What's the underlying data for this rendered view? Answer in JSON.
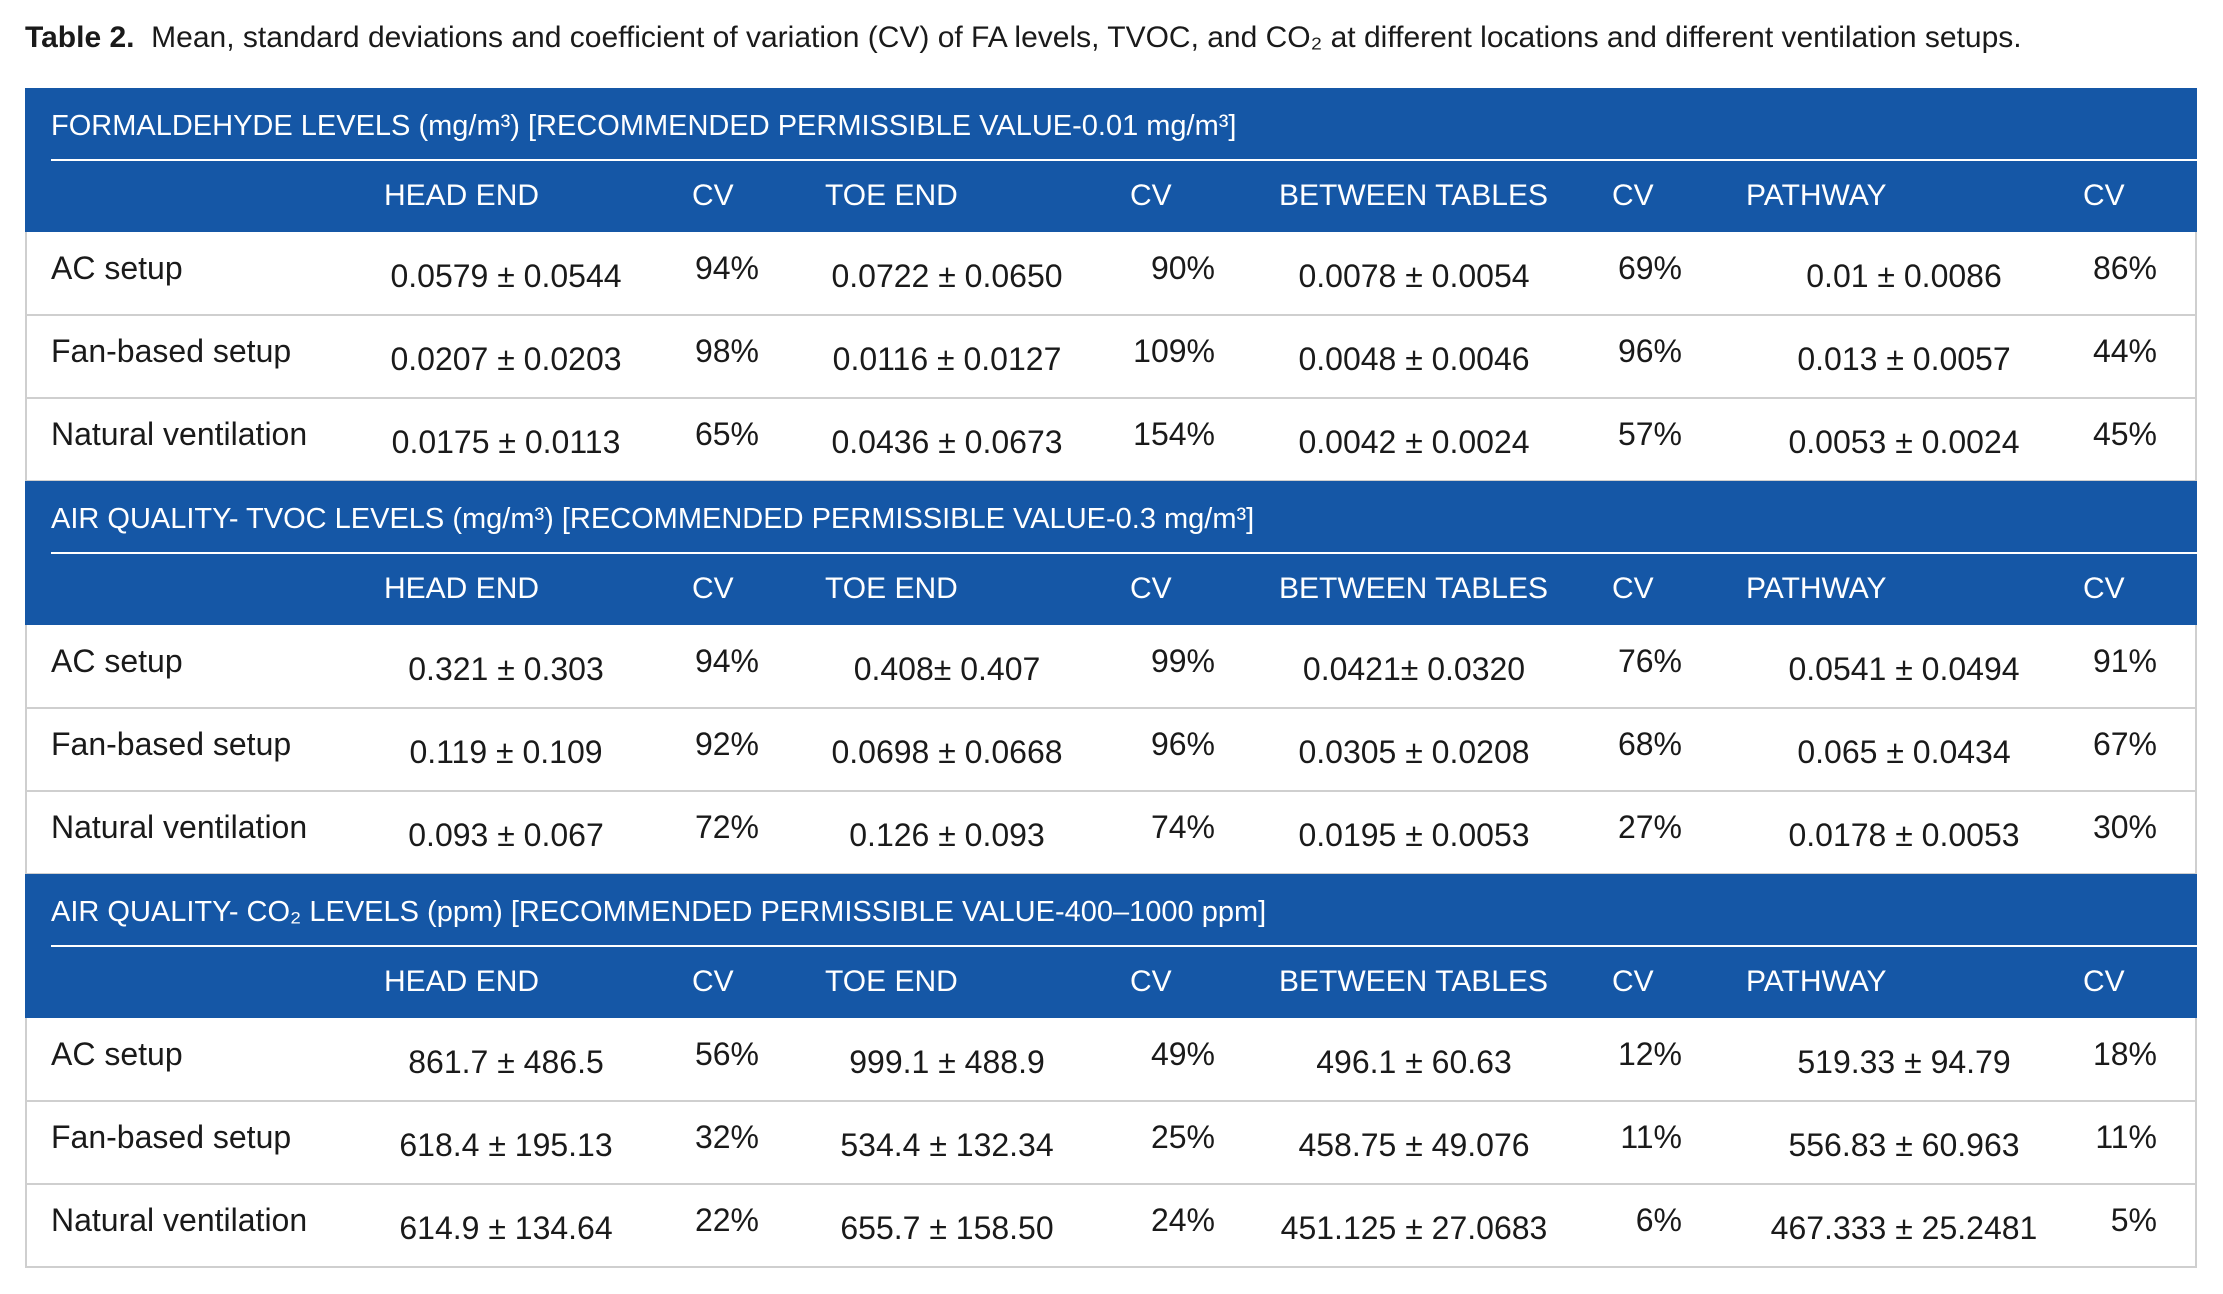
{
  "caption": {
    "label": "Table 2.",
    "text": "Mean, standard deviations and coefficient of variation (CV) of FA levels, TVOC, and CO₂ at different locations and different ventilation setups."
  },
  "sections": [
    {
      "title": "FORMALDEHYDE LEVELS (mg/m³) [RECOMMENDED PERMISSIBLE VALUE-0.01 mg/m³]",
      "columns": [
        "HEAD END",
        "CV",
        "TOE END",
        "CV",
        "BETWEEN TABLES",
        "CV",
        "PATHWAY",
        "CV"
      ],
      "rows": [
        {
          "label": "AC setup",
          "cells": [
            "0.0579 ± 0.0544",
            "94%",
            "0.0722 ± 0.0650",
            "90%",
            "0.0078 ± 0.0054",
            "69%",
            "0.01 ± 0.0086",
            "86%"
          ]
        },
        {
          "label": "Fan-based setup",
          "cells": [
            "0.0207 ± 0.0203",
            "98%",
            "0.0116 ± 0.0127",
            "109%",
            "0.0048 ± 0.0046",
            "96%",
            "0.013 ± 0.0057",
            "44%"
          ]
        },
        {
          "label": "Natural ventilation",
          "cells": [
            "0.0175 ± 0.0113",
            "65%",
            "0.0436 ± 0.0673",
            "154%",
            "0.0042 ± 0.0024",
            "57%",
            "0.0053 ± 0.0024",
            "45%"
          ]
        }
      ]
    },
    {
      "title": "AIR QUALITY- TVOC LEVELS (mg/m³) [RECOMMENDED PERMISSIBLE VALUE-0.3 mg/m³]",
      "columns": [
        "HEAD END",
        "CV",
        "TOE END",
        "CV",
        "BETWEEN TABLES",
        "CV",
        "PATHWAY",
        "CV"
      ],
      "rows": [
        {
          "label": "AC setup",
          "cells": [
            "0.321 ± 0.303",
            "94%",
            "0.408± 0.407",
            "99%",
            "0.0421± 0.0320",
            "76%",
            "0.0541 ± 0.0494",
            "91%"
          ]
        },
        {
          "label": "Fan-based setup",
          "cells": [
            "0.119 ± 0.109",
            "92%",
            "0.0698 ± 0.0668",
            "96%",
            "0.0305 ± 0.0208",
            "68%",
            "0.065 ± 0.0434",
            "67%"
          ]
        },
        {
          "label": "Natural ventilation",
          "cells": [
            "0.093 ± 0.067",
            "72%",
            "0.126 ± 0.093",
            "74%",
            "0.0195 ± 0.0053",
            "27%",
            "0.0178 ± 0.0053",
            "30%"
          ]
        }
      ]
    },
    {
      "title": "AIR QUALITY- CO₂ LEVELS (ppm) [RECOMMENDED PERMISSIBLE VALUE-400–1000 ppm]",
      "columns": [
        "HEAD END",
        "CV",
        "TOE END",
        "CV",
        "BETWEEN TABLES",
        "CV",
        "PATHWAY",
        "CV"
      ],
      "rows": [
        {
          "label": "AC setup",
          "cells": [
            "861.7 ± 486.5",
            "56%",
            "999.1 ± 488.9",
            "49%",
            "496.1 ± 60.63",
            "12%",
            "519.33 ± 94.79",
            "18%"
          ]
        },
        {
          "label": "Fan-based setup",
          "cells": [
            "618.4 ± 195.13",
            "32%",
            "534.4 ± 132.34",
            "25%",
            "458.75 ± 49.076",
            "11%",
            "556.83 ± 60.963",
            "11%"
          ]
        },
        {
          "label": "Natural ventilation",
          "cells": [
            "614.9 ± 134.64",
            "22%",
            "655.7 ± 158.50",
            "24%",
            "451.125 ± 27.0683",
            "6%",
            "467.333 ± 25.2481",
            "5%"
          ]
        }
      ]
    }
  ]
}
